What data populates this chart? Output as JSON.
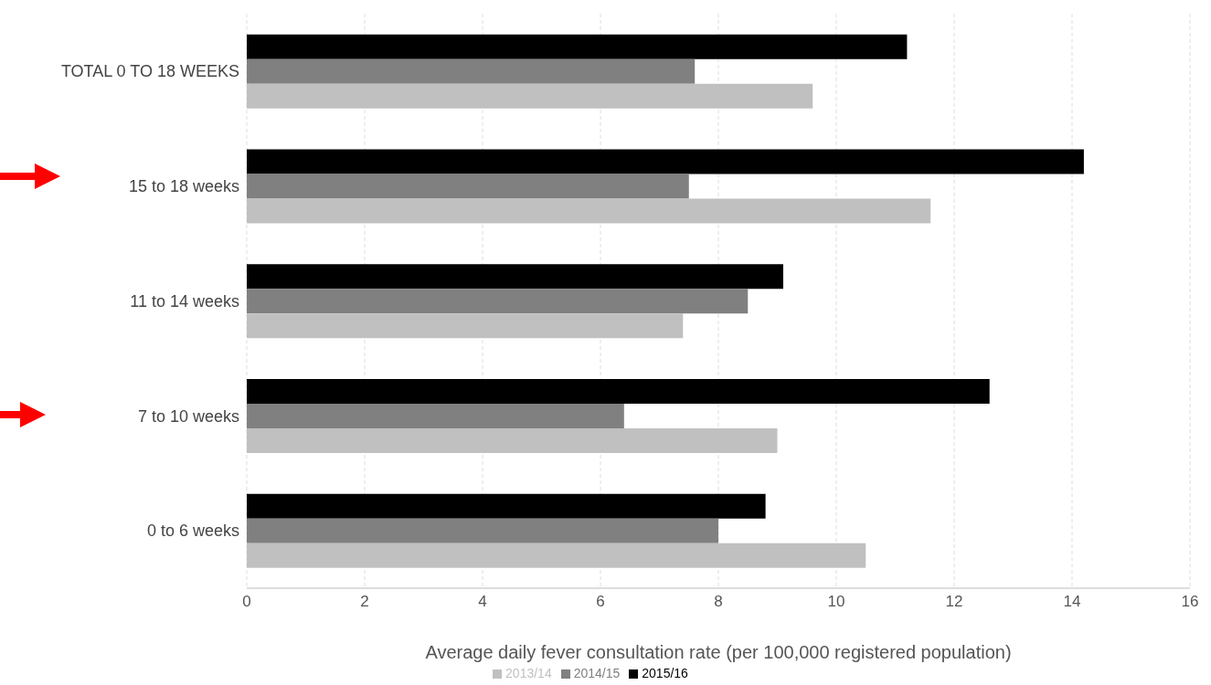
{
  "chart_data": {
    "type": "bar",
    "orientation": "horizontal",
    "xlabel": "Average daily fever consultation rate (per 100,000 registered population)",
    "categories": [
      "TOTAL 0 TO 18 WEEKS",
      "15 to 18 weeks",
      "11 to 14 weeks",
      "7 to 10 weeks",
      "0 to 6 weeks"
    ],
    "series": [
      {
        "name": "2015/16",
        "color": "#000000",
        "values": [
          11.2,
          14.2,
          9.1,
          12.6,
          8.8
        ]
      },
      {
        "name": "2014/15",
        "color": "#808080",
        "values": [
          7.6,
          7.5,
          8.5,
          6.4,
          8.0
        ]
      },
      {
        "name": "2013/14",
        "color": "#c0c0c0",
        "values": [
          9.6,
          11.6,
          7.4,
          9.0,
          10.5
        ]
      }
    ],
    "xlim": [
      0,
      16
    ],
    "xticks": [
      0,
      2,
      4,
      6,
      8,
      10,
      12,
      14,
      16
    ],
    "grid": "x",
    "legend": "bottom"
  }
}
